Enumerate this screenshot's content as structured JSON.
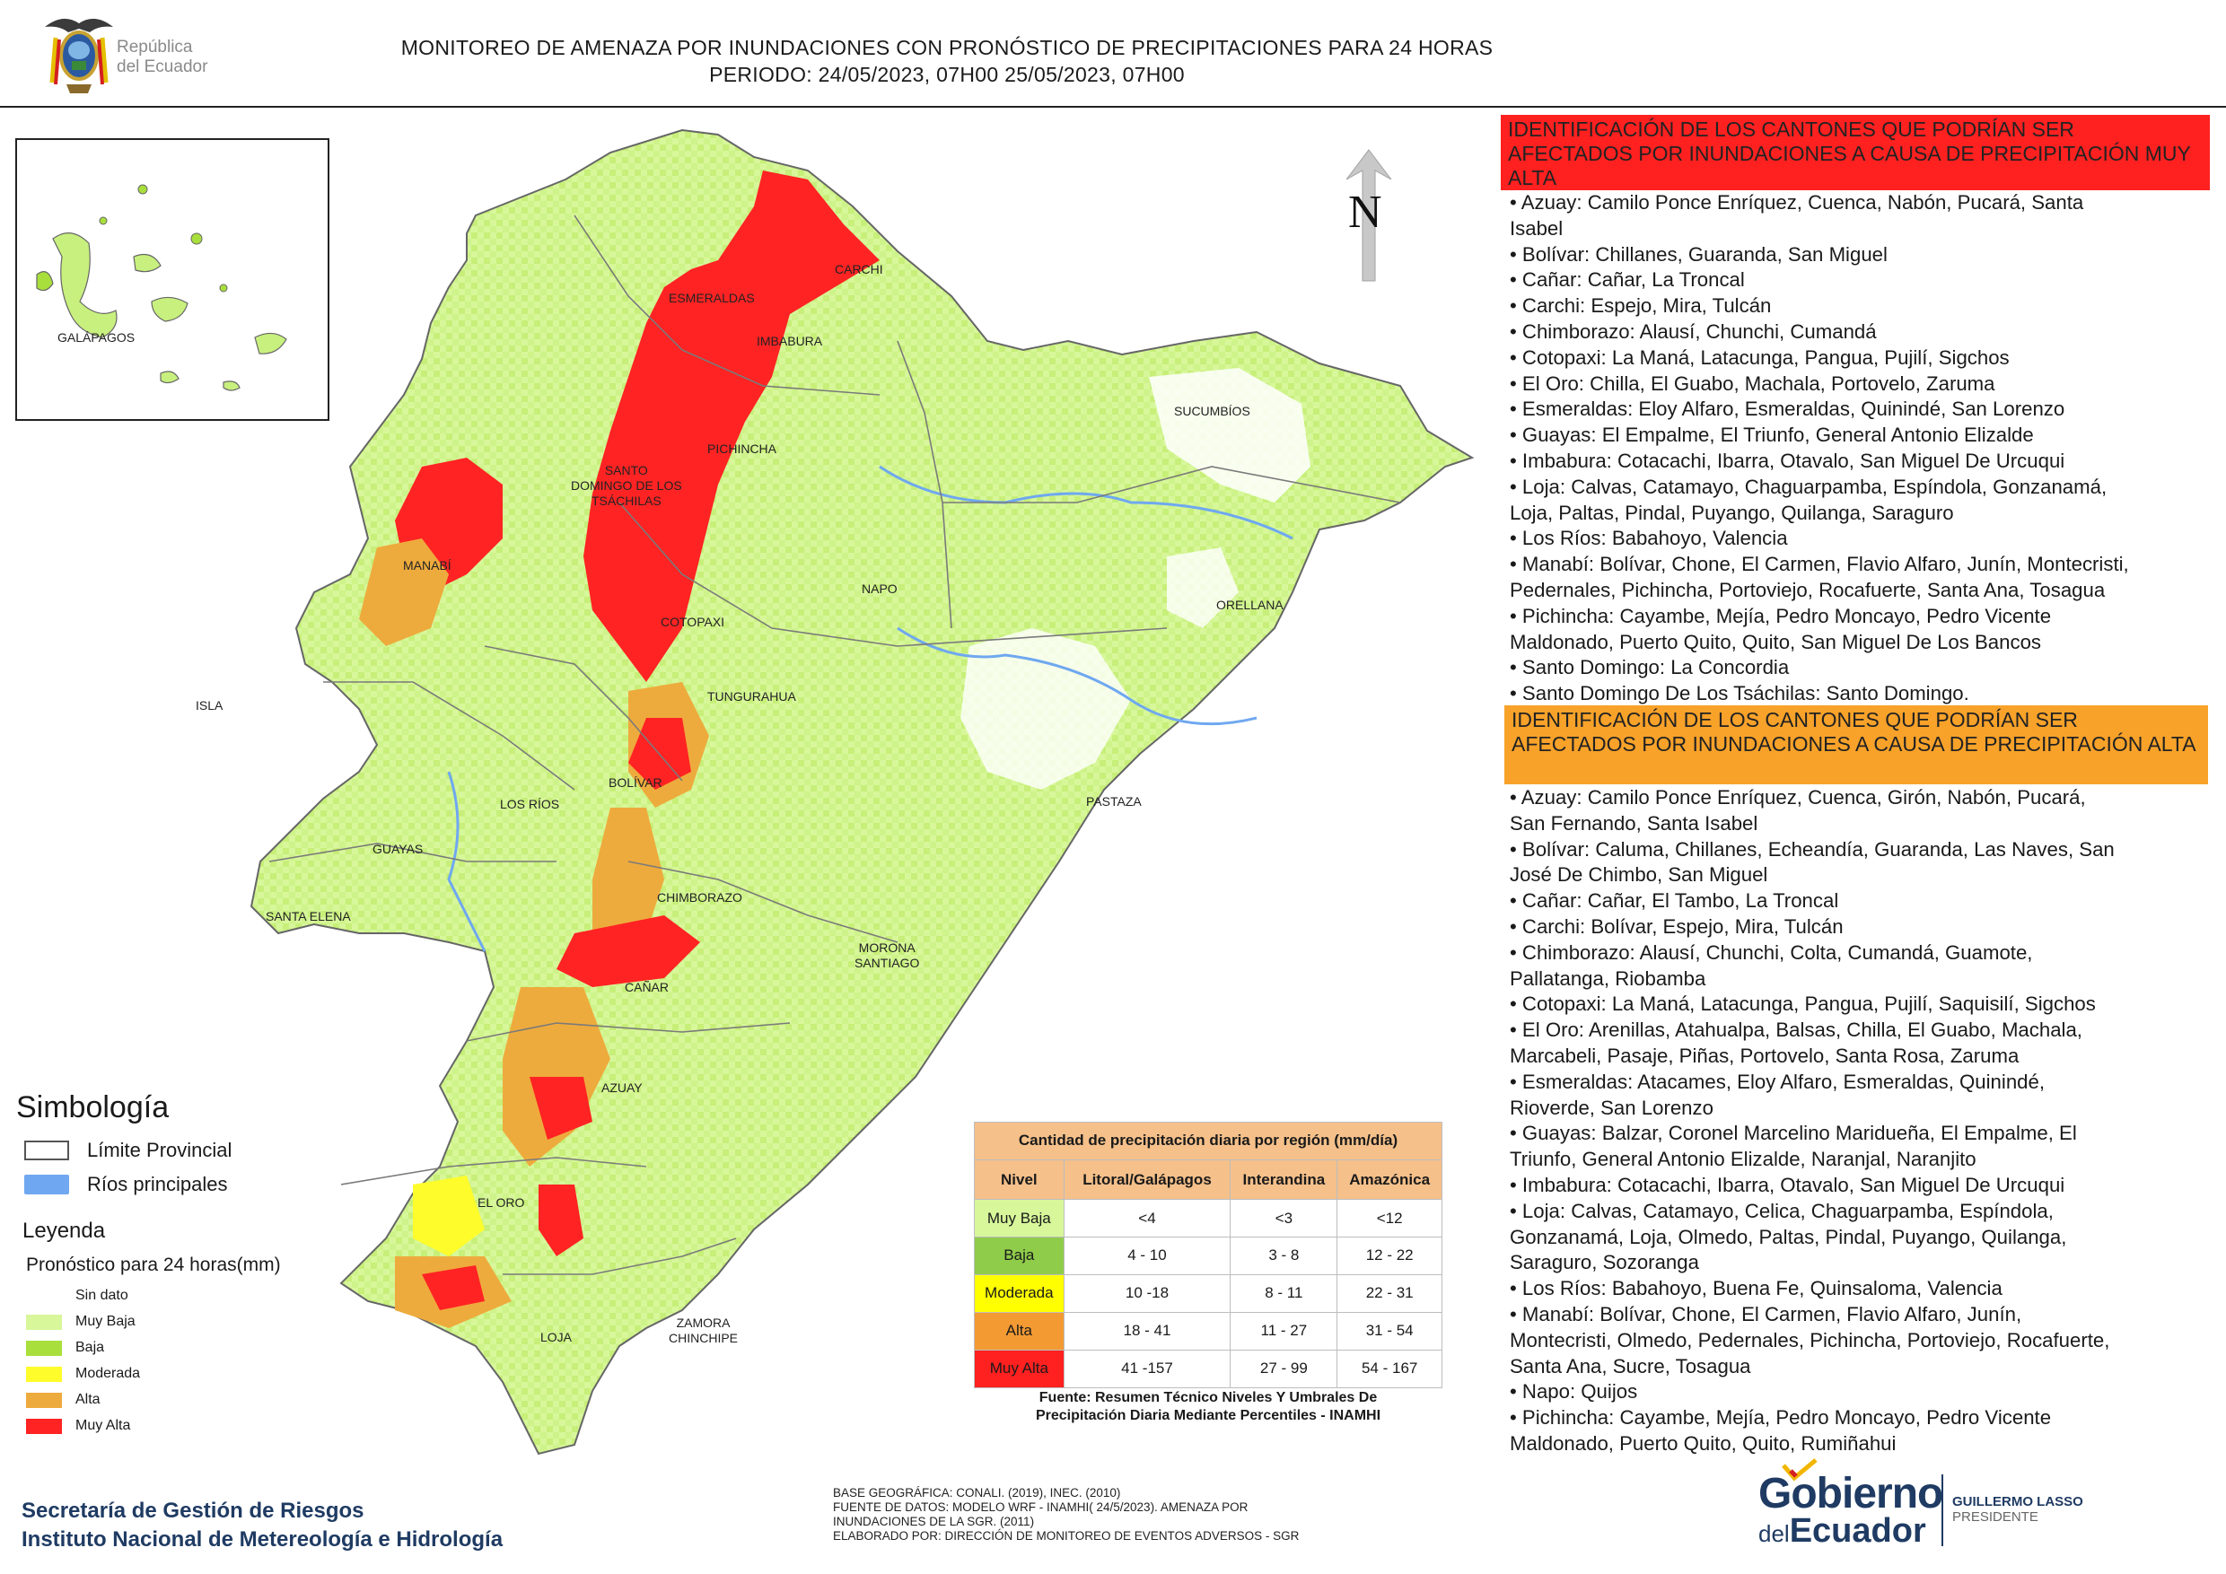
{
  "header": {
    "logo_text_line1": "República",
    "logo_text_line2": "del Ecuador",
    "title": "MONITOREO DE AMENAZA POR INUNDACIONES  CON PRONÓSTICO DE  PRECIPITACIONES PARA 24 HORAS",
    "period": "PERIODO: 24/05/2023, 07H00 25/05/2023, 07H00"
  },
  "map": {
    "inset_label": "GALÁPAGOS",
    "north_label": "N",
    "province_labels": {
      "carchi": "CARCHI",
      "esmeraldas": "ESMERALDAS",
      "imbabura": "IMBABURA",
      "sucumbios": "SUCUMBÍOS",
      "santo_domingo": "SANTO\nDOMINGO DE LOS\nTSÁCHILAS",
      "pichincha": "PICHINCHA",
      "manabi": "MANABÍ",
      "napo": "NAPO",
      "orellana": "ORELLANA",
      "cotopaxi": "COTOPAXI",
      "isla": "ISLA",
      "tungurahua": "TUNGURAHUA",
      "bolivar": "BOLÍVAR",
      "los_rios": "LOS RÍOS",
      "pastaza": "PASTAZA",
      "guayas": "GUAYAS",
      "chimborazo": "CHIMBORAZO",
      "santa_elena": "SANTA ELENA",
      "morona_santiago": "MORONA\nSANTIAGO",
      "canar": "CAÑAR",
      "azuay": "AZUAY",
      "el_oro": "EL ORO",
      "loja": "LOJA",
      "zamora_chinchipe": "ZAMORA\nCHINCHIPE"
    }
  },
  "legend": {
    "symbology_title": "Simbología",
    "symbols": [
      {
        "label": "Límite Provincial",
        "kind": "outline",
        "color": "#ffffff"
      },
      {
        "label": "Ríos principales",
        "kind": "fill",
        "color": "#6fa8f0"
      }
    ],
    "legend_title": "Leyenda",
    "forecast_title": "Pronóstico para 24 horas(mm)",
    "items": [
      {
        "label": "Sin dato",
        "color": "#ffffff"
      },
      {
        "label": "Muy Baja",
        "color": "#d7f79a"
      },
      {
        "label": "Baja",
        "color": "#a8df3c"
      },
      {
        "label": "Moderada",
        "color": "#fffc2b"
      },
      {
        "label": "Alta",
        "color": "#eeab3d"
      },
      {
        "label": "Muy Alta",
        "color": "#ff2323"
      }
    ]
  },
  "precip_table": {
    "caption": "Cantidad de precipitación diaria por región (mm/día)",
    "headers": [
      "Nivel",
      "Litoral/Galápagos",
      "Interandina",
      "Amazónica"
    ],
    "rows": [
      {
        "level": "Muy Baja",
        "color": "#d7f79a",
        "values": [
          "<4",
          "<3",
          "<12"
        ]
      },
      {
        "level": "Baja",
        "color": "#8fcc4a",
        "values": [
          "4 - 10",
          "3 - 8",
          "12 - 22"
        ]
      },
      {
        "level": "Moderada",
        "color": "#ffff00",
        "values": [
          "10 -18",
          "8 - 11",
          "22 - 31"
        ]
      },
      {
        "level": "Alta",
        "color": "#f39a33",
        "values": [
          "18 - 41",
          "11 - 27",
          "31 - 54"
        ]
      },
      {
        "level": "Muy Alta",
        "color": "#ff2020",
        "values": [
          "41 -157",
          "27 - 99",
          "54 - 167"
        ]
      }
    ],
    "source_line1": "Fuente: Resumen Técnico Niveles Y Umbrales De",
    "source_line2": "Precipitación Diaria Mediante Percentiles - INAMHI"
  },
  "footer": {
    "org_line1": "Secretaría de Gestión de Riesgos",
    "org_line2": "Instituto Nacional de Metereología e Hidrología",
    "notes": [
      "BASE GEOGRÁFICA: CONALI. (2019), INEC. (2010)",
      "FUENTE DE DATOS: MODELO WRF - INAMHI( 24/5/2023).  AMENAZA POR",
      "INUNDACIONES DE LA SGR. (2011)",
      "ELABORADO POR: DIRECCIÓN DE MONITOREO DE EVENTOS ADVERSOS - SGR"
    ],
    "gov_logo_line1": "Gobierno",
    "gov_logo_line2_small": "del",
    "gov_logo_line2_big": "Ecuador",
    "president_name": "GUILLERMO LASSO",
    "president_title": "PRESIDENTE"
  },
  "right_panel": {
    "muy_alta_header": "IDENTIFICACIÓN DE LOS CANTONES QUE PODRÍAN SER AFECTADOS POR INUNDACIONES  A CAUSA DE PRECIPITACIÓN MUY ALTA",
    "muy_alta_lines": [
      "• Azuay: Camilo Ponce Enríquez, Cuenca, Nabón, Pucará, Santa",
      "Isabel",
      "• Bolívar: Chillanes, Guaranda, San Miguel",
      "• Cañar: Cañar, La Troncal",
      "• Carchi: Espejo, Mira, Tulcán",
      "• Chimborazo: Alausí, Chunchi, Cumandá",
      "• Cotopaxi: La Maná, Latacunga, Pangua, Pujilí, Sigchos",
      "• El Oro: Chilla, El Guabo, Machala, Portovelo, Zaruma",
      "• Esmeraldas: Eloy Alfaro, Esmeraldas, Quinindé, San Lorenzo",
      "• Guayas: El Empalme, El Triunfo, General Antonio Elizalde",
      "• Imbabura: Cotacachi, Ibarra, Otavalo, San Miguel De Urcuqui",
      "• Loja: Calvas, Catamayo, Chaguarpamba, Espíndola, Gonzanamá,",
      "Loja, Paltas, Pindal, Puyango, Quilanga, Saraguro",
      "• Los Ríos: Babahoyo, Valencia",
      "• Manabí: Bolívar, Chone, El Carmen, Flavio Alfaro, Junín, Montecristi,",
      "Pedernales, Pichincha, Portoviejo, Rocafuerte, Santa Ana, Tosagua",
      "• Pichincha: Cayambe, Mejía, Pedro Moncayo, Pedro Vicente",
      "Maldonado, Puerto Quito, Quito, San Miguel De Los Bancos",
      "• Santo Domingo: La Concordia",
      "• Santo Domingo De Los Tsáchilas: Santo Domingo."
    ],
    "alta_header": "IDENTIFICACIÓN DE LOS CANTONES QUE  PODRÍAN SER AFECTADOS POR INUNDACIONES  A CAUSA DE PRECIPITACIÓN ALTA",
    "alta_lines": [
      "• Azuay: Camilo Ponce Enríquez, Cuenca, Girón, Nabón, Pucará,",
      "San Fernando, Santa Isabel",
      "• Bolívar: Caluma, Chillanes, Echeandía, Guaranda, Las Naves, San",
      "José De Chimbo, San Miguel",
      "• Cañar: Cañar, El Tambo, La Troncal",
      "• Carchi: Bolívar, Espejo, Mira, Tulcán",
      "• Chimborazo: Alausí, Chunchi, Colta, Cumandá, Guamote,",
      "Pallatanga, Riobamba",
      "• Cotopaxi: La Maná, Latacunga, Pangua, Pujilí, Saquisilí, Sigchos",
      "• El Oro: Arenillas, Atahualpa, Balsas, Chilla, El Guabo, Machala,",
      "Marcabeli, Pasaje, Piñas, Portovelo, Santa Rosa, Zaruma",
      "• Esmeraldas: Atacames, Eloy Alfaro, Esmeraldas, Quinindé,",
      "Rioverde, San Lorenzo",
      "• Guayas: Balzar, Coronel Marcelino Maridueña, El Empalme, El",
      "Triunfo, General Antonio Elizalde, Naranjal, Naranjito",
      "• Imbabura: Cotacachi, Ibarra, Otavalo, San Miguel De Urcuqui",
      "• Loja: Calvas, Catamayo, Celica, Chaguarpamba, Espíndola,",
      "Gonzanamá, Loja, Olmedo, Paltas, Pindal, Puyango, Quilanga,",
      "Saraguro, Sozoranga",
      "• Los Ríos: Babahoyo, Buena Fe, Quinsaloma, Valencia",
      "• Manabí: Bolívar, Chone, El Carmen, Flavio Alfaro, Junín,",
      "Montecristi, Olmedo, Pedernales, Pichincha, Portoviejo, Rocafuerte,",
      "Santa Ana, Sucre, Tosagua",
      "• Napo: Quijos",
      "• Pichincha: Cayambe, Mejía, Pedro Moncayo, Pedro Vicente",
      "Maldonado, Puerto Quito, Quito, Rumiñahui"
    ]
  }
}
